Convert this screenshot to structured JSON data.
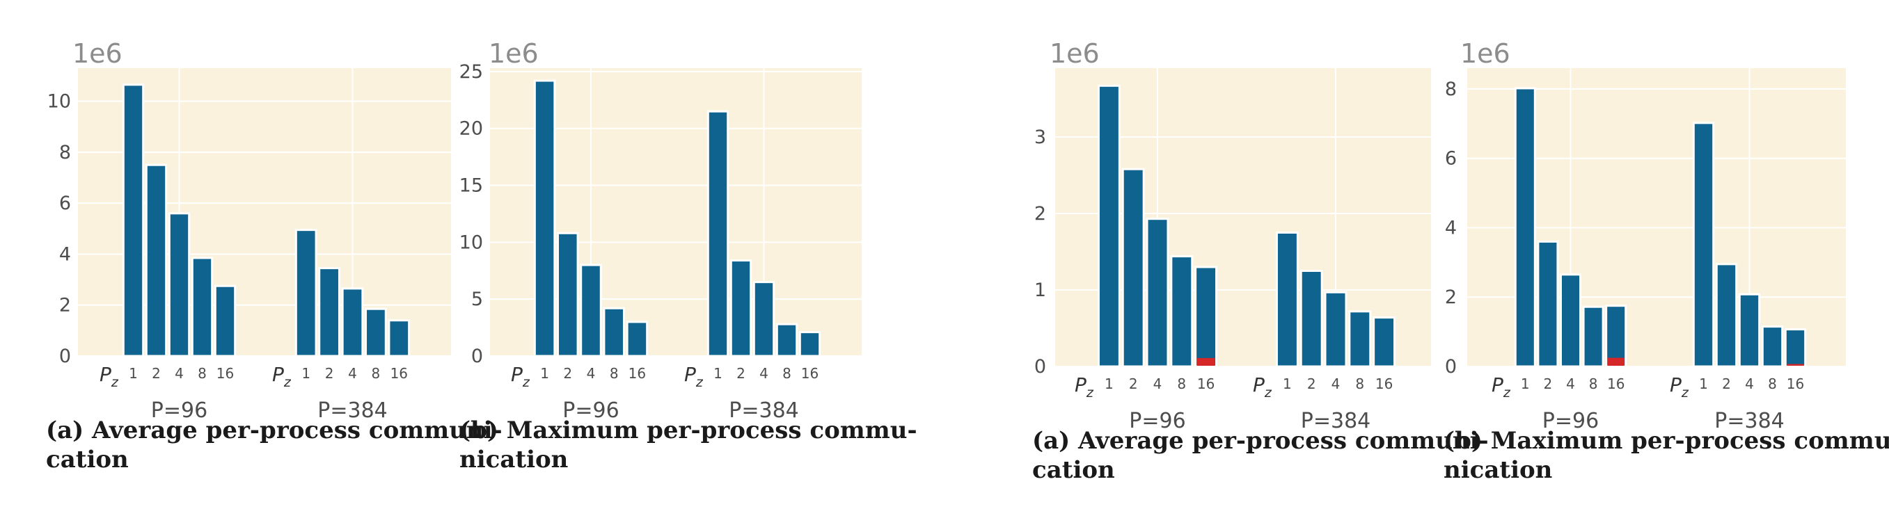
{
  "charts": [
    {
      "chart_data": {
        "type": "bar",
        "panel": "Left (a)",
        "exponent_label": "1e6",
        "ylim": [
          0,
          11.3
        ],
        "yticks": [
          "0",
          "2",
          "4",
          "6",
          "8",
          "10"
        ],
        "ytick_values": [
          0,
          2,
          4,
          6,
          8,
          10
        ],
        "groups": [
          {
            "label": "P=96",
            "pz_label": "P",
            "pz_sub": "z",
            "categories": [
              "1",
              "2",
              "4",
              "8",
              "16"
            ],
            "values": [
              10.65,
              7.5,
              5.6,
              3.85,
              2.75
            ],
            "highlight": [
              0,
              0,
              0,
              0,
              0
            ]
          },
          {
            "label": "P=384",
            "pz_label": "P",
            "pz_sub": "z",
            "categories": [
              "1",
              "2",
              "4",
              "8",
              "16"
            ],
            "values": [
              4.95,
              3.45,
              2.65,
              1.85,
              1.4
            ],
            "highlight": [
              0,
              0,
              0,
              0,
              0
            ]
          }
        ]
      },
      "caption": {
        "line1": "(a) Average per-process communi-",
        "line2": "cation"
      }
    },
    {
      "chart_data": {
        "type": "bar",
        "panel": "Left (b)",
        "exponent_label": "1e6",
        "ylim": [
          0,
          25.3
        ],
        "yticks": [
          "0",
          "5",
          "10",
          "15",
          "20",
          "25"
        ],
        "ytick_values": [
          0,
          5,
          10,
          15,
          20,
          25
        ],
        "groups": [
          {
            "label": "P=96",
            "pz_label": "P",
            "pz_sub": "z",
            "categories": [
              "1",
              "2",
              "4",
              "8",
              "16"
            ],
            "values": [
              24.2,
              10.8,
              8.0,
              4.2,
              3.0
            ],
            "highlight": [
              0,
              0,
              0,
              0,
              0
            ]
          },
          {
            "label": "P=384",
            "pz_label": "P",
            "pz_sub": "z",
            "categories": [
              "1",
              "2",
              "4",
              "8",
              "16"
            ],
            "values": [
              21.5,
              8.4,
              6.5,
              2.8,
              2.1
            ],
            "highlight": [
              0,
              0,
              0,
              0,
              0
            ]
          }
        ]
      },
      "caption": {
        "line1": "(b) Maximum per-process commu-",
        "line2": "nication"
      }
    },
    {
      "chart_data": {
        "type": "bar",
        "panel": "Right (a)",
        "exponent_label": "1e6",
        "ylim": [
          0,
          3.9
        ],
        "yticks": [
          "0",
          "1",
          "2",
          "3"
        ],
        "ytick_values": [
          0,
          1,
          2,
          3
        ],
        "groups": [
          {
            "label": "P=96",
            "pz_label": "P",
            "pz_sub": "z",
            "categories": [
              "1",
              "2",
              "4",
              "8",
              "16"
            ],
            "values": [
              3.67,
              2.58,
              1.93,
              1.44,
              1.3
            ],
            "highlight": [
              0,
              0,
              0,
              0,
              0.11
            ]
          },
          {
            "label": "P=384",
            "pz_label": "P",
            "pz_sub": "z",
            "categories": [
              "1",
              "2",
              "4",
              "8",
              "16"
            ],
            "values": [
              1.75,
              1.25,
              0.97,
              0.72,
              0.64
            ],
            "highlight": [
              0,
              0,
              0,
              0,
              0
            ]
          }
        ]
      },
      "caption": {
        "line1": "(a) Average per-process communi-",
        "line2": "cation"
      }
    },
    {
      "chart_data": {
        "type": "bar",
        "panel": "Right (b)",
        "exponent_label": "1e6",
        "ylim": [
          0,
          8.6
        ],
        "yticks": [
          "0",
          "2",
          "4",
          "6",
          "8"
        ],
        "ytick_values": [
          0,
          2,
          4,
          6,
          8
        ],
        "groups": [
          {
            "label": "P=96",
            "pz_label": "P",
            "pz_sub": "z",
            "categories": [
              "1",
              "2",
              "4",
              "8",
              "16"
            ],
            "values": [
              8.02,
              3.6,
              2.65,
              1.72,
              1.75
            ],
            "highlight": [
              0,
              0,
              0,
              0,
              0.25
            ]
          },
          {
            "label": "P=384",
            "pz_label": "P",
            "pz_sub": "z",
            "categories": [
              "1",
              "2",
              "4",
              "8",
              "16"
            ],
            "values": [
              7.02,
              2.95,
              2.08,
              1.15,
              1.07
            ],
            "highlight": [
              0,
              0,
              0,
              0,
              0.07
            ]
          }
        ]
      },
      "caption": {
        "line1": "(b) Maximum per-process commu-",
        "line2": "nication"
      }
    }
  ],
  "colors": {
    "bar": "#0e638f",
    "highlight": "#d62728",
    "plot_bg": "#faf2dc",
    "grid": "#ffffff",
    "tick_text": "#4d4d4d",
    "exponent_text": "#8c8c8c",
    "group_label_text": "#4d4d4d"
  }
}
